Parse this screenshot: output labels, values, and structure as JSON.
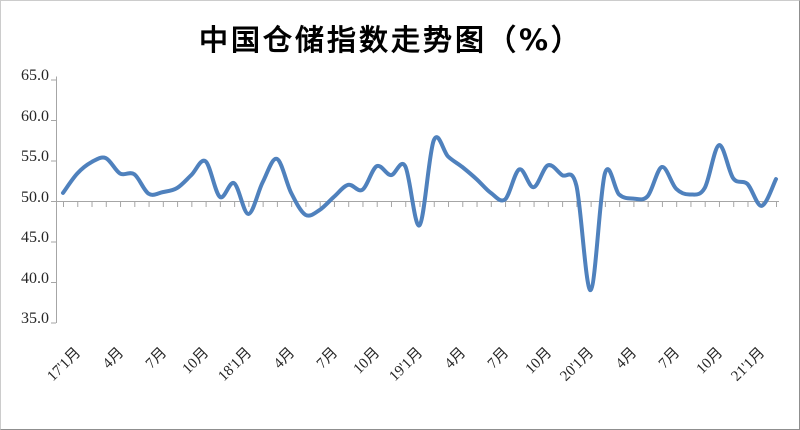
{
  "window": {
    "background": "#ffffff",
    "border_color": "#8f8f8f"
  },
  "chart_data": {
    "type": "line",
    "title": "中国仓储指数走势图（%）",
    "xlabel": "",
    "ylabel": "",
    "ylim": [
      35.0,
      65.0
    ],
    "yticks": [
      35.0,
      40.0,
      45.0,
      50.0,
      55.0,
      60.0,
      65.0
    ],
    "ytick_decimals": 1,
    "x_axis_crosses_at": 50.0,
    "grid": false,
    "legend": "none",
    "smooth": true,
    "axis_color": "#a6a6a6",
    "tick_label_color": "#262626",
    "x_tick_label_every": 3,
    "x_tick_labels": [
      "17'1月",
      "4月",
      "7月",
      "10月",
      "18'1月",
      "4月",
      "7月",
      "10月",
      "19'1月",
      "4月",
      "7月",
      "10月",
      "20'1月",
      "4月",
      "7月",
      "10月",
      "21'1月"
    ],
    "x": [
      "2017-01",
      "2017-02",
      "2017-03",
      "2017-04",
      "2017-05",
      "2017-06",
      "2017-07",
      "2017-08",
      "2017-09",
      "2017-10",
      "2017-11",
      "2017-12",
      "2018-01",
      "2018-02",
      "2018-03",
      "2018-04",
      "2018-05",
      "2018-06",
      "2018-07",
      "2018-08",
      "2018-09",
      "2018-10",
      "2018-11",
      "2018-12",
      "2019-01",
      "2019-02",
      "2019-03",
      "2019-04",
      "2019-05",
      "2019-06",
      "2019-07",
      "2019-08",
      "2019-09",
      "2019-10",
      "2019-11",
      "2019-12",
      "2020-01",
      "2020-02",
      "2020-03",
      "2020-04",
      "2020-05",
      "2020-06",
      "2020-07",
      "2020-08",
      "2020-09",
      "2020-10",
      "2020-11",
      "2020-12",
      "2021-01",
      "2021-02",
      "2021-03"
    ],
    "series": [
      {
        "name": "中国仓储指数",
        "color": "#4F81BD",
        "line_width": 4,
        "values": [
          51.0,
          53.4,
          54.8,
          55.3,
          53.4,
          53.3,
          50.9,
          51.1,
          51.6,
          53.2,
          54.9,
          50.5,
          52.2,
          48.4,
          52.3,
          55.2,
          51.0,
          48.3,
          48.9,
          50.5,
          52.0,
          51.4,
          54.3,
          53.2,
          54.3,
          47.0,
          57.5,
          55.5,
          54.2,
          52.7,
          51.0,
          50.2,
          53.9,
          51.7,
          54.4,
          53.2,
          51.9,
          39.0,
          53.4,
          50.8,
          50.3,
          50.6,
          54.2,
          51.5,
          50.8,
          51.6,
          56.9,
          52.8,
          52.1,
          49.4,
          52.7
        ]
      }
    ]
  }
}
